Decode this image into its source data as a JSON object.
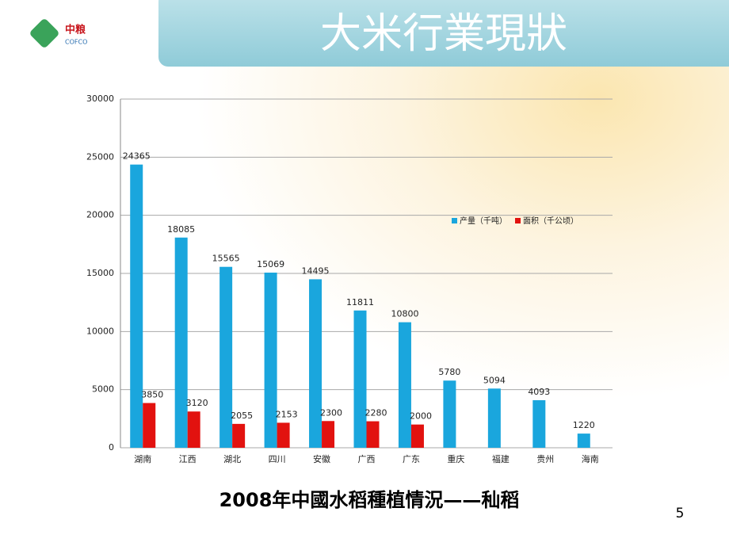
{
  "slide": {
    "title": "大米行業現狀",
    "logo": "中粮",
    "logo_sub": "COFCO",
    "caption": "2008年中國水稻種植情況——秈稻",
    "page_number": "5"
  },
  "chart_data": {
    "type": "bar",
    "categories": [
      "湖南",
      "江西",
      "湖北",
      "四川",
      "安徽",
      "广西",
      "广东",
      "重庆",
      "福建",
      "贵州",
      "海南"
    ],
    "series": [
      {
        "name": "产量（千吨）",
        "color": "#1aa6dd",
        "values": [
          24365,
          18085,
          15565,
          15069,
          14495,
          11811,
          10800,
          5780,
          5094,
          4093,
          1220
        ]
      },
      {
        "name": "面积（千公顷）",
        "color": "#e2120f",
        "values": [
          3850,
          3120,
          2055,
          2153,
          2300,
          2280,
          2000,
          null,
          null,
          null,
          null
        ]
      }
    ],
    "ylim": [
      0,
      30000
    ],
    "yticks": [
      0,
      5000,
      10000,
      15000,
      20000,
      25000,
      30000
    ],
    "grid": true,
    "legend": "right"
  }
}
